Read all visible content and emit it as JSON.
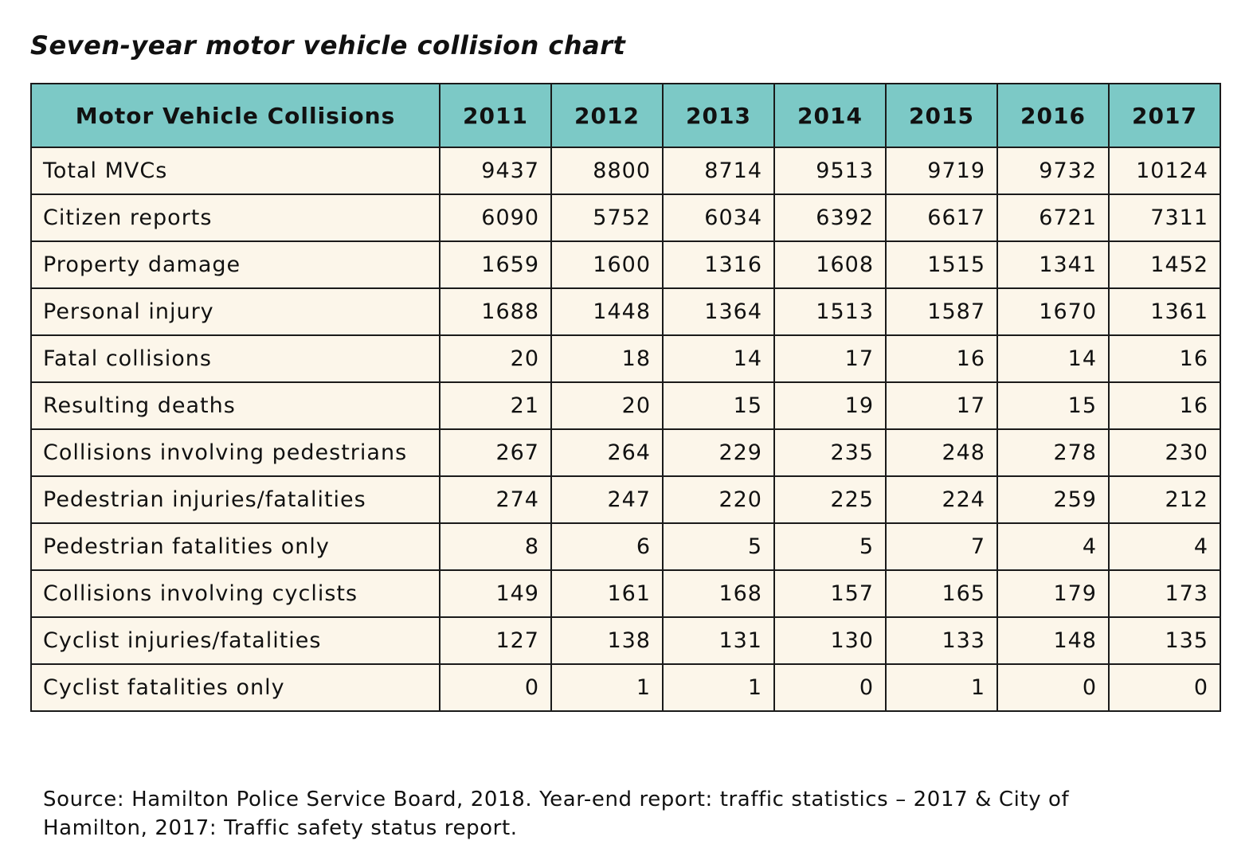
{
  "title": "Seven-year motor vehicle collision chart",
  "table": {
    "header_label": "Motor Vehicle Collisions",
    "years": [
      "2011",
      "2012",
      "2013",
      "2014",
      "2015",
      "2016",
      "2017"
    ],
    "rows": [
      {
        "label": "Total MVCs",
        "values": [
          "9437",
          "8800",
          "8714",
          "9513",
          "9719",
          "9732",
          "10124"
        ]
      },
      {
        "label": "Citizen reports",
        "values": [
          "6090",
          "5752",
          "6034",
          "6392",
          "6617",
          "6721",
          "7311"
        ]
      },
      {
        "label": "Property damage",
        "values": [
          "1659",
          "1600",
          "1316",
          "1608",
          "1515",
          "1341",
          "1452"
        ]
      },
      {
        "label": "Personal injury",
        "values": [
          "1688",
          "1448",
          "1364",
          "1513",
          "1587",
          "1670",
          "1361"
        ]
      },
      {
        "label": "Fatal collisions",
        "values": [
          "20",
          "18",
          "14",
          "17",
          "16",
          "14",
          "16"
        ]
      },
      {
        "label": "Resulting deaths",
        "values": [
          "21",
          "20",
          "15",
          "19",
          "17",
          "15",
          "16"
        ]
      },
      {
        "label": "Collisions involving pedestrians",
        "values": [
          "267",
          "264",
          "229",
          "235",
          "248",
          "278",
          "230"
        ]
      },
      {
        "label": "Pedestrian injuries/fatalities",
        "values": [
          "274",
          "247",
          "220",
          "225",
          "224",
          "259",
          "212"
        ]
      },
      {
        "label": "Pedestrian fatalities only",
        "values": [
          "8",
          "6",
          "5",
          "5",
          "7",
          "4",
          "4"
        ]
      },
      {
        "label": "Collisions involving cyclists",
        "values": [
          "149",
          "161",
          "168",
          "157",
          "165",
          "179",
          "173"
        ]
      },
      {
        "label": "Cyclist injuries/fatalities",
        "values": [
          "127",
          "138",
          "131",
          "130",
          "133",
          "148",
          "135"
        ]
      },
      {
        "label": "Cyclist fatalities only",
        "values": [
          "0",
          "1",
          "1",
          "0",
          "1",
          "0",
          "0"
        ]
      }
    ]
  },
  "source": "Source: Hamilton Police Service Board, 2018. Year-end report: traffic statistics – 2017 & City of Hamilton, 2017: Traffic safety status report.",
  "colors": {
    "header_bg": "#7cc9c6",
    "row_bg": "#fcf6ea",
    "border": "#1a1a1a"
  }
}
